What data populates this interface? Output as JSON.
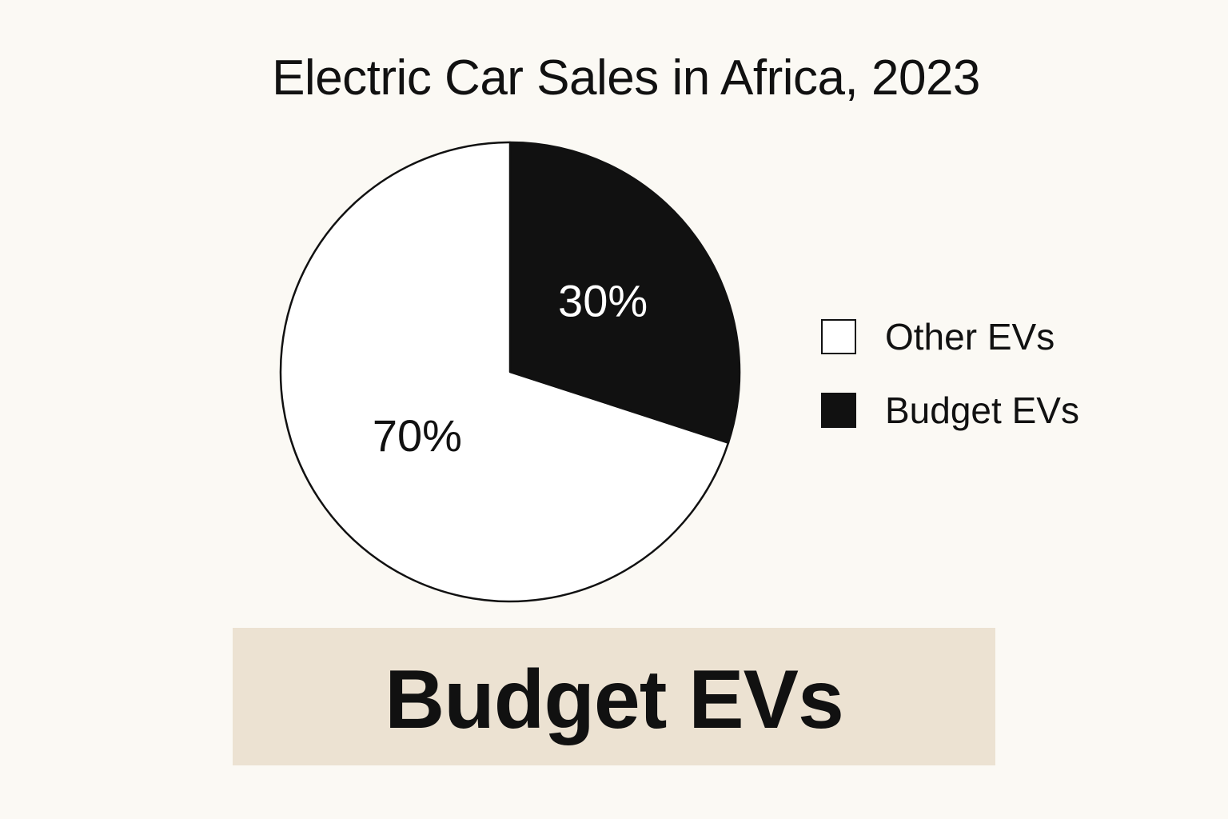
{
  "chart_data": {
    "type": "pie",
    "title": "Electric Car Sales in Africa, 2023",
    "slices": [
      {
        "label": "Budget EVs",
        "value": 30,
        "display": "30%",
        "color": "#111111",
        "text_color": "#ffffff"
      },
      {
        "label": "Other EVs",
        "value": 70,
        "display": "70%",
        "color": "#ffffff",
        "text_color": "#111111"
      }
    ],
    "legend": {
      "placement": "right",
      "items": [
        {
          "label": "Other EVs",
          "color": "#ffffff"
        },
        {
          "label": "Budget EVs",
          "color": "#111111"
        }
      ]
    }
  },
  "banner": {
    "text": "Budget EVs",
    "background": "#ece2d2"
  }
}
